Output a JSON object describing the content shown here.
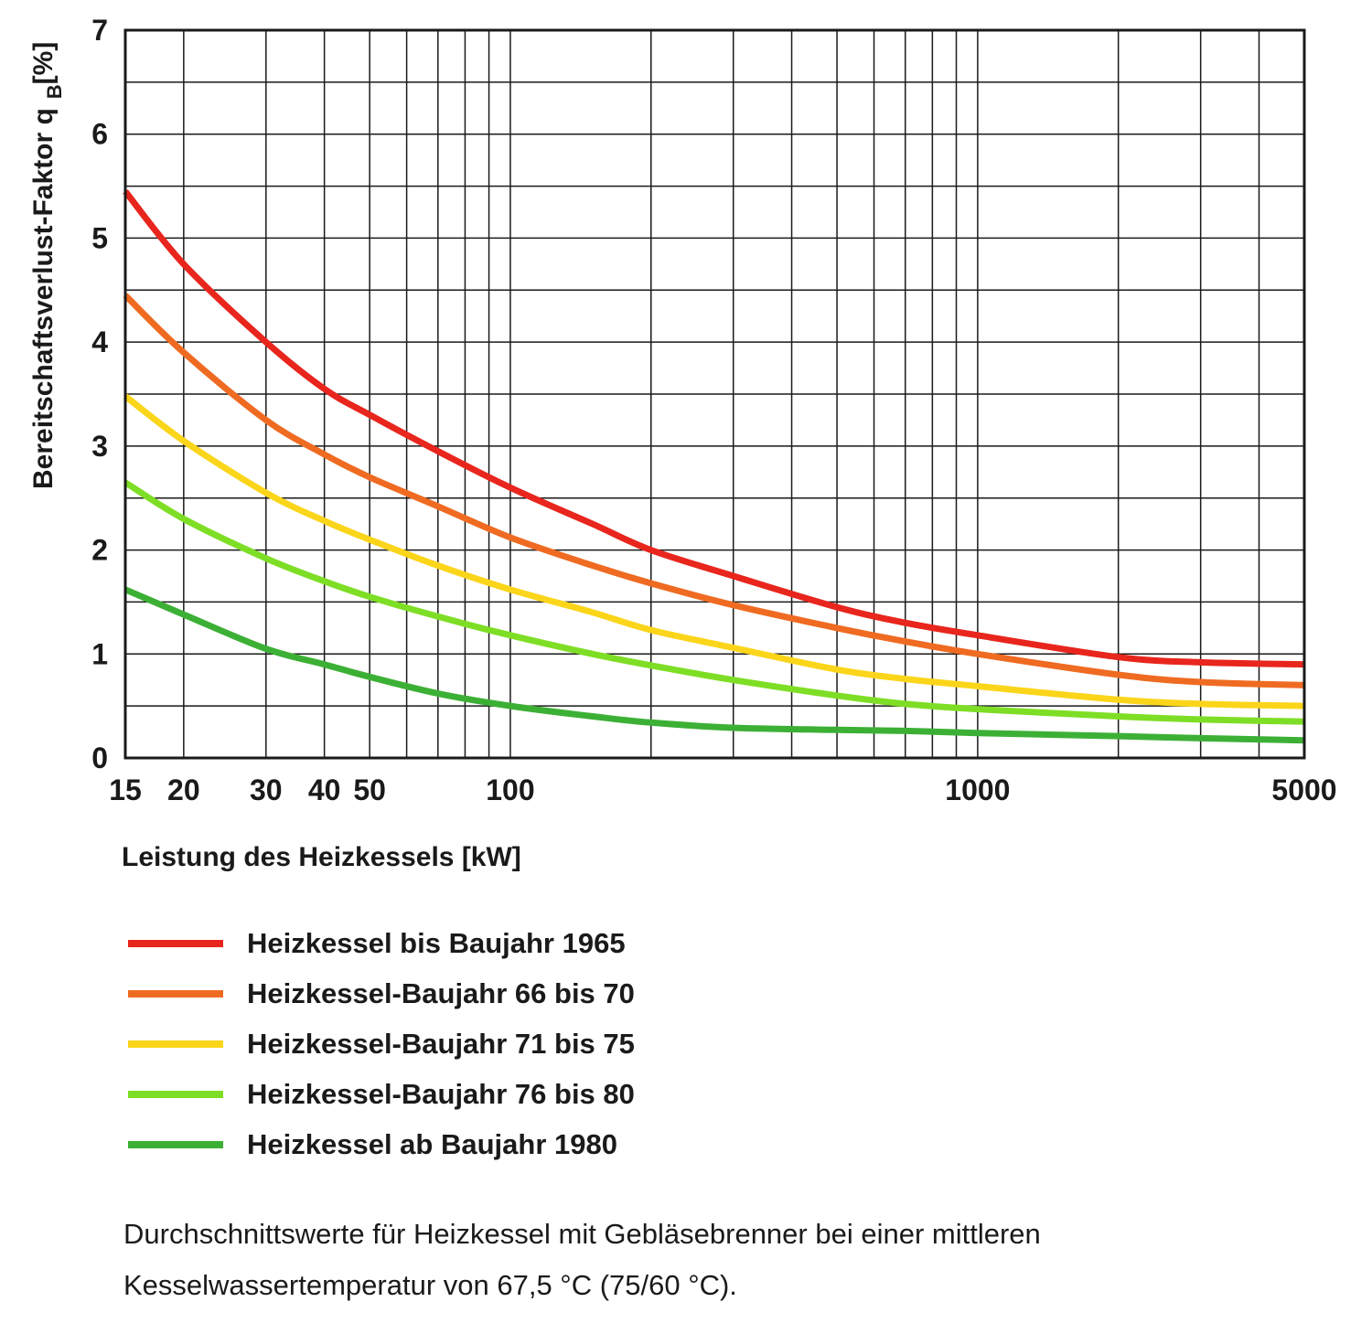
{
  "chart_data": {
    "type": "line",
    "x_scale": "log",
    "xlim": [
      15,
      5000
    ],
    "ylim": [
      0,
      7
    ],
    "grid": true,
    "legend_position": "below",
    "ylabel_main": "Bereitschaftsverlust-Faktor q",
    "ylabel_sub": "B",
    "ylabel_unit": "[%]",
    "xlabel": "Leistung des Heizkessels [kW]",
    "x_tick_labels": [
      {
        "value": 15,
        "label": "15"
      },
      {
        "value": 20,
        "label": "20"
      },
      {
        "value": 30,
        "label": "30"
      },
      {
        "value": 40,
        "label": "40"
      },
      {
        "value": 50,
        "label": "50"
      },
      {
        "value": 100,
        "label": "100"
      },
      {
        "value": 1000,
        "label": "1000"
      },
      {
        "value": 5000,
        "label": "5000"
      }
    ],
    "y_ticks": [
      0,
      1,
      2,
      3,
      4,
      5,
      6,
      7
    ],
    "series": [
      {
        "name": "Heizkessel bis Baujahr 1965",
        "color": "#e8261d",
        "points": [
          [
            15,
            5.45
          ],
          [
            20,
            4.75
          ],
          [
            30,
            4.0
          ],
          [
            40,
            3.55
          ],
          [
            50,
            3.3
          ],
          [
            70,
            2.95
          ],
          [
            100,
            2.6
          ],
          [
            150,
            2.25
          ],
          [
            200,
            2.0
          ],
          [
            300,
            1.75
          ],
          [
            500,
            1.45
          ],
          [
            700,
            1.3
          ],
          [
            1000,
            1.18
          ],
          [
            2000,
            0.97
          ],
          [
            3000,
            0.92
          ],
          [
            5000,
            0.9
          ]
        ]
      },
      {
        "name": "Heizkessel-Baujahr 66 bis 70",
        "color": "#ef6b22",
        "points": [
          [
            15,
            4.45
          ],
          [
            20,
            3.9
          ],
          [
            30,
            3.25
          ],
          [
            40,
            2.92
          ],
          [
            50,
            2.7
          ],
          [
            70,
            2.42
          ],
          [
            100,
            2.12
          ],
          [
            150,
            1.85
          ],
          [
            200,
            1.68
          ],
          [
            300,
            1.47
          ],
          [
            500,
            1.25
          ],
          [
            700,
            1.12
          ],
          [
            1000,
            1.0
          ],
          [
            2000,
            0.8
          ],
          [
            3000,
            0.73
          ],
          [
            5000,
            0.7
          ]
        ]
      },
      {
        "name": "Heizkessel-Baujahr 71 bis 75",
        "color": "#fbd51a",
        "points": [
          [
            15,
            3.48
          ],
          [
            20,
            3.05
          ],
          [
            30,
            2.55
          ],
          [
            40,
            2.28
          ],
          [
            50,
            2.1
          ],
          [
            70,
            1.85
          ],
          [
            100,
            1.62
          ],
          [
            150,
            1.4
          ],
          [
            200,
            1.23
          ],
          [
            300,
            1.06
          ],
          [
            500,
            0.85
          ],
          [
            700,
            0.76
          ],
          [
            1000,
            0.69
          ],
          [
            2000,
            0.56
          ],
          [
            3000,
            0.52
          ],
          [
            5000,
            0.5
          ]
        ]
      },
      {
        "name": "Heizkessel-Baujahr 76 bis 80",
        "color": "#7ede25",
        "points": [
          [
            15,
            2.65
          ],
          [
            20,
            2.3
          ],
          [
            30,
            1.92
          ],
          [
            40,
            1.7
          ],
          [
            50,
            1.55
          ],
          [
            70,
            1.36
          ],
          [
            100,
            1.18
          ],
          [
            150,
            1.0
          ],
          [
            200,
            0.89
          ],
          [
            300,
            0.75
          ],
          [
            500,
            0.6
          ],
          [
            700,
            0.52
          ],
          [
            1000,
            0.47
          ],
          [
            2000,
            0.4
          ],
          [
            3000,
            0.37
          ],
          [
            5000,
            0.35
          ]
        ]
      },
      {
        "name": "Heizkessel ab Baujahr 1980",
        "color": "#3cb035",
        "points": [
          [
            15,
            1.62
          ],
          [
            20,
            1.38
          ],
          [
            30,
            1.05
          ],
          [
            40,
            0.9
          ],
          [
            50,
            0.78
          ],
          [
            70,
            0.62
          ],
          [
            100,
            0.5
          ],
          [
            150,
            0.4
          ],
          [
            200,
            0.34
          ],
          [
            300,
            0.29
          ],
          [
            500,
            0.27
          ],
          [
            700,
            0.26
          ],
          [
            1000,
            0.24
          ],
          [
            2000,
            0.21
          ],
          [
            3000,
            0.19
          ],
          [
            5000,
            0.17
          ]
        ]
      }
    ]
  },
  "footnote": {
    "line1": "Durchschnittswerte für Heizkessel mit Gebläsebrenner bei einer mittleren",
    "line2": "Kesselwassertemperatur von 67,5 °C (75/60 °C)."
  }
}
